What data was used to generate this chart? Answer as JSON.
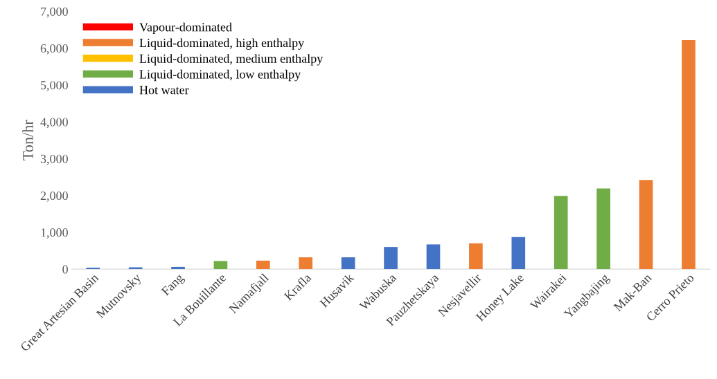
{
  "chart_data": {
    "type": "bar",
    "ylabel": "Ton/hr",
    "categories": [
      "Great Artesian Basin",
      "Mutnovsky",
      "Fang",
      "La Bouillante",
      "Namafjall",
      "Krafla",
      "Husavik",
      "Wabuska",
      "Pauzhetskaya",
      "Nesjavellir",
      "Honey Lake",
      "Wairakei",
      "Yangbajing",
      "Mak-Ban",
      "Cerro Prieto"
    ],
    "series": [
      {
        "name": "Vapour-dominated",
        "color": "#ff0000",
        "values": [
          null,
          null,
          null,
          null,
          null,
          null,
          null,
          null,
          null,
          null,
          null,
          null,
          null,
          null,
          null
        ]
      },
      {
        "name": "Liquid-dominated, high enthalpy",
        "color": "#ed7d31",
        "values": [
          null,
          null,
          null,
          null,
          230,
          320,
          null,
          null,
          null,
          700,
          null,
          null,
          null,
          2420,
          6220
        ]
      },
      {
        "name": "Liquid-dominated, medium enthalpy",
        "color": "#ffc000",
        "values": [
          null,
          null,
          null,
          null,
          null,
          null,
          null,
          null,
          null,
          null,
          null,
          null,
          null,
          null,
          null
        ]
      },
      {
        "name": "Liquid-dominated, low enthalpy",
        "color": "#70ad47",
        "values": [
          null,
          null,
          null,
          220,
          null,
          null,
          null,
          null,
          null,
          null,
          null,
          1990,
          2190,
          null,
          null
        ]
      },
      {
        "name": "Hot water",
        "color": "#4472c4",
        "values": [
          40,
          50,
          60,
          null,
          null,
          null,
          320,
          600,
          670,
          null,
          870,
          null,
          null,
          null,
          null
        ]
      }
    ],
    "ylim": [
      0,
      7000
    ],
    "yticks": [
      {
        "value": 0,
        "label": "0"
      },
      {
        "value": 1000,
        "label": "1,000"
      },
      {
        "value": 2000,
        "label": "2,000"
      },
      {
        "value": 3000,
        "label": "3,000"
      },
      {
        "value": 4000,
        "label": "4,000"
      },
      {
        "value": 5000,
        "label": "5,000"
      },
      {
        "value": 6000,
        "label": "6,000"
      },
      {
        "value": 7000,
        "label": "7,000"
      }
    ],
    "grid": false,
    "legend": "top left"
  }
}
